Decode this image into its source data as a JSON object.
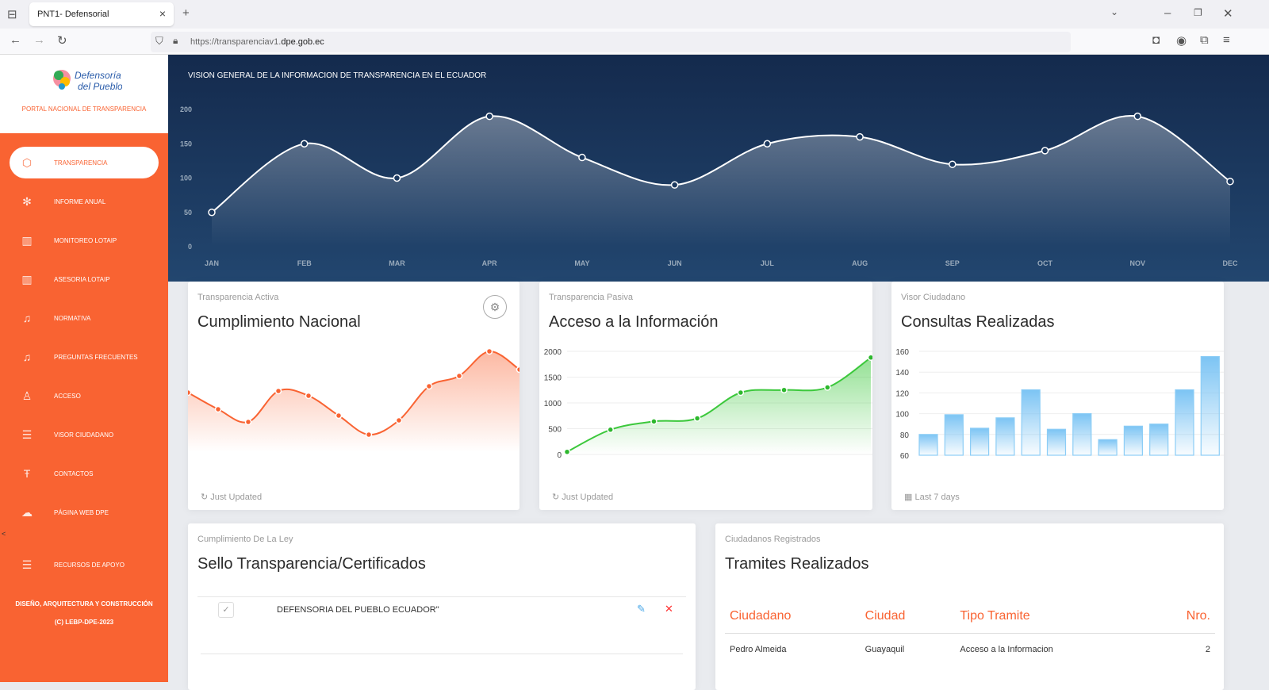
{
  "browser": {
    "tab_title": "PNT1- Defensorial",
    "url_prefix": "https://transparenciav1.",
    "url_domain": "dpe.gob.ec"
  },
  "sidebar": {
    "logo_text": "Defensoría del Pueblo",
    "portal": "PORTAL NACIONAL DE TRANSPARENCIA",
    "items": [
      {
        "label": "TRANSPARENCIA",
        "icon": "box-icon"
      },
      {
        "label": "INFORME ANUAL",
        "icon": "atom-icon"
      },
      {
        "label": "MONITOREO LOTAIP",
        "icon": "map-icon"
      },
      {
        "label": "ASESORIA LOTAIP",
        "icon": "map-icon"
      },
      {
        "label": "NORMATIVA",
        "icon": "bell-icon"
      },
      {
        "label": "PREGUNTAS FRECUENTES",
        "icon": "bell-icon"
      },
      {
        "label": "ACCESO",
        "icon": "user-icon"
      },
      {
        "label": "VISOR CIUDADANO",
        "icon": "list-icon"
      },
      {
        "label": "CONTACTOS",
        "icon": "text-icon"
      },
      {
        "label": "PÁGINA WEB DPE",
        "icon": "cloud-download-icon"
      },
      {
        "label": "RECURSOS DE APOYO",
        "icon": "list-icon"
      }
    ],
    "footer1": "DISEÑO, ARQUITECTURA Y CONSTRUCCIÓN",
    "footer2": "(C) LEBP-DPE-2023",
    "collapse": "<"
  },
  "hero": {
    "title": "VISION GENERAL DE LA INFORMACION DE TRANSPARENCIA EN EL ECUADOR"
  },
  "colors": {
    "orange": "#f96332",
    "navy": "#1a3356",
    "green": "#3cc83c",
    "blue": "#7cc4f4"
  },
  "chart_data": [
    {
      "type": "area",
      "categories": [
        "JAN",
        "FEB",
        "MAR",
        "APR",
        "MAY",
        "JUN",
        "JUL",
        "AUG",
        "SEP",
        "OCT",
        "NOV",
        "DEC"
      ],
      "values": [
        50,
        150,
        100,
        190,
        130,
        90,
        150,
        160,
        120,
        140,
        190,
        95
      ],
      "ylim": [
        0,
        200
      ],
      "yticks": [
        0,
        50,
        100,
        150,
        200
      ],
      "grid": false
    },
    {
      "type": "area",
      "values": [
        65,
        44,
        28,
        67,
        61,
        36,
        12,
        30,
        73,
        86,
        117,
        94
      ],
      "axes": false
    },
    {
      "type": "area",
      "values": [
        50,
        480,
        640,
        700,
        1200,
        1250,
        1300,
        1880
      ],
      "ylim": [
        0,
        2000
      ],
      "yticks": [
        0,
        500,
        1000,
        1500,
        2000
      ],
      "grid": true
    },
    {
      "type": "bar",
      "values": [
        80,
        99,
        86,
        96,
        123,
        85,
        100,
        75,
        88,
        90,
        123,
        155
      ],
      "ylim": [
        60,
        160
      ],
      "yticks": [
        60,
        80,
        100,
        120,
        140,
        160
      ],
      "grid": true
    }
  ],
  "cards": [
    {
      "category": "Transparencia Activa",
      "title": "Cumplimiento Nacional",
      "footer": "Just Updated"
    },
    {
      "category": "Transparencia Pasiva",
      "title": "Acceso a la Información",
      "footer": "Just Updated"
    },
    {
      "category": "Visor Ciudadano",
      "title": "Consultas Realizadas",
      "footer": "Last 7 days"
    }
  ],
  "ley": {
    "category": "Cumplimiento De La Ley",
    "title": "Sello Transparencia/Certificados",
    "task": "DEFENSORIA DEL PUEBLO ECUADOR\"",
    "checked": true
  },
  "tramites": {
    "category": "Ciudadanos Registrados",
    "title": "Tramites Realizados",
    "headers": [
      "Ciudadano",
      "Ciudad",
      "Tipo Tramite",
      "Nro."
    ],
    "rows": [
      [
        "Pedro Almeida",
        "Guayaquil",
        "Acceso a la Informacion",
        "2"
      ]
    ]
  }
}
